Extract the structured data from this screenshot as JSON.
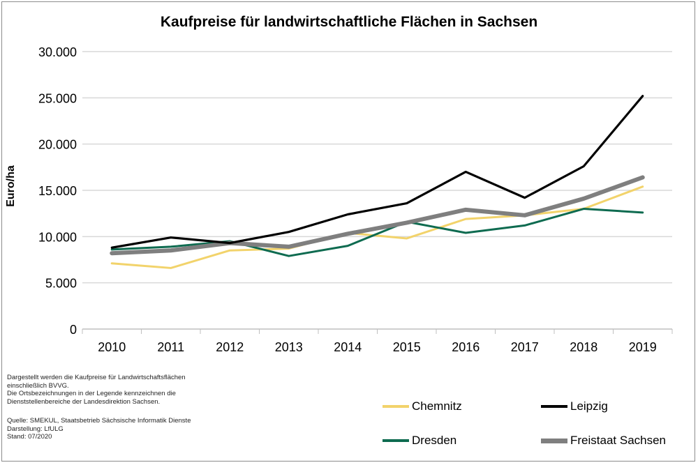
{
  "chart_data": {
    "type": "line",
    "title": "Kaufpreise für landwirtschaftliche Flächen in Sachsen",
    "xlabel": "",
    "ylabel": "Euro/ha",
    "x": [
      "2010",
      "2011",
      "2012",
      "2013",
      "2014",
      "2015",
      "2016",
      "2017",
      "2018",
      "2019"
    ],
    "ylim": [
      0,
      30000
    ],
    "yticks": [
      0,
      5000,
      10000,
      15000,
      20000,
      25000,
      30000
    ],
    "ytick_labels": [
      "0",
      "5.000",
      "10.000",
      "15.000",
      "20.000",
      "25.000",
      "30.000"
    ],
    "grid": true,
    "legend_position": "bottom-right",
    "series": [
      {
        "name": "Chemnitz",
        "color": "#f2d36b",
        "values": [
          7100,
          6600,
          8500,
          8700,
          10400,
          9800,
          11900,
          12300,
          13000,
          15400
        ]
      },
      {
        "name": "Leipzig",
        "color": "#000000",
        "values": [
          8800,
          9900,
          9300,
          10500,
          12400,
          13600,
          17000,
          14200,
          17600,
          25200
        ]
      },
      {
        "name": "Dresden",
        "color": "#0e6b50",
        "values": [
          8600,
          8900,
          9500,
          7900,
          9000,
          11600,
          10400,
          11200,
          13000,
          12600
        ]
      },
      {
        "name": "Freistaat Sachsen",
        "color": "#7f7f7f",
        "values": [
          8200,
          8500,
          9300,
          8900,
          10300,
          11500,
          12900,
          12300,
          14100,
          16400
        ]
      }
    ]
  },
  "notes": {
    "line1": "Dargestellt werden die Kaufpreise für Landwirtschaftsflächen",
    "line2": "einschließlich BVVG.",
    "line3": "Die Ortsbezeichnungen in der Legende kennzeichnen die",
    "line4": "Dienststellenbereiche der Landesdirektion Sachsen.",
    "source": "Quelle:  SMEKUL,  Staatsbetrieb Sächsische Informatik Dienste",
    "author": "Darstellung: LfULG",
    "date": "Stand: 07/2020"
  }
}
